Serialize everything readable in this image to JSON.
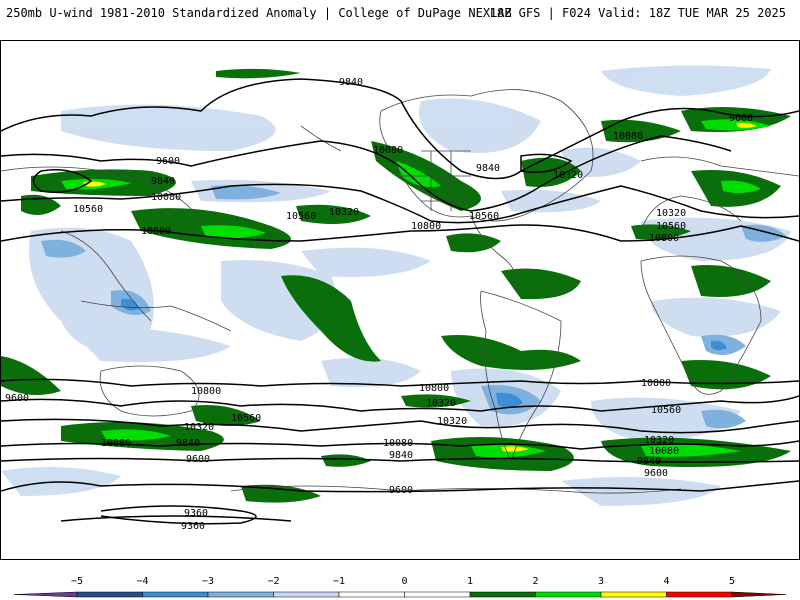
{
  "header": {
    "left": "250mb U-wind 1981-2010 Standardized Anomaly | College of DuPage NEXLAB",
    "right": "18Z GFS | F024 Valid: 18Z TUE MAR 25 2025"
  },
  "contour_labels": [
    "9840",
    "9600",
    "9840",
    "10080",
    "10560",
    "10800",
    "10080",
    "9840",
    "10320",
    "10560",
    "10560",
    "10320",
    "9600",
    "10080",
    "10320",
    "10560",
    "10800",
    "10800",
    "10800",
    "10560",
    "10320",
    "10080",
    "9840",
    "9600",
    "9360",
    "9360",
    "10800",
    "10320",
    "10320",
    "10080",
    "9840",
    "9600",
    "10800",
    "10560",
    "10320",
    "9840",
    "9600",
    "10080",
    "9600"
  ],
  "colorbar": {
    "ticks": [
      "−5",
      "−4",
      "−3",
      "−2",
      "−1",
      "0",
      "1",
      "2",
      "3",
      "4",
      "5"
    ],
    "colors": [
      "#6a3d9a",
      "#2b4c8a",
      "#3c8fd4",
      "#7fb1df",
      "#c6d9ee",
      "#ffffff",
      "#ffffff",
      "#0a6e0a",
      "#00e000",
      "#ffff00",
      "#ff0000",
      "#8b0000"
    ]
  },
  "fill_colors": {
    "pos1": "#0a6e0a",
    "pos2": "#00dd00",
    "pos3": "#ffff00",
    "neg1": "#c6d9ee",
    "neg2": "#7fb1df",
    "neg3": "#3c8fd4"
  }
}
